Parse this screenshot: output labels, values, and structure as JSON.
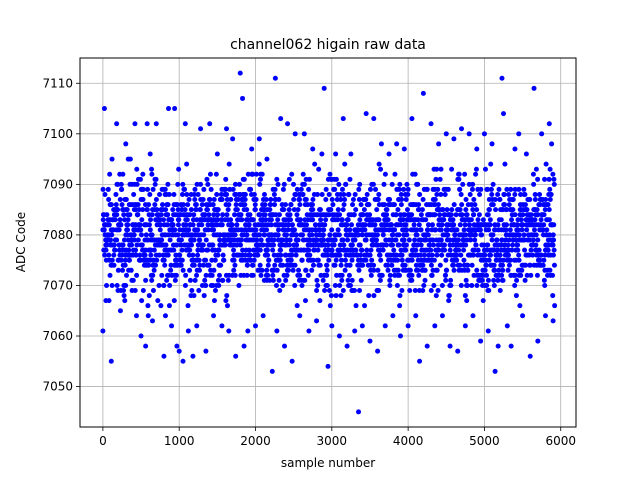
{
  "chart_data": {
    "type": "scatter",
    "title": "channel062 higain raw data",
    "xlabel": "sample number",
    "ylabel": "ADC Code",
    "xlim": [
      -300,
      6200
    ],
    "ylim": [
      7042,
      7115
    ],
    "x_ticks": [
      0,
      1000,
      2000,
      3000,
      4000,
      5000,
      6000
    ],
    "y_ticks": [
      7050,
      7060,
      7070,
      7080,
      7090,
      7100,
      7110
    ],
    "grid": true,
    "marker_color": "#0000ff",
    "series": [
      {
        "points": [
          [
            0,
            7061
          ],
          [
            20,
            7105
          ],
          [
            40,
            7067
          ],
          [
            80,
            7067
          ],
          [
            110,
            7055
          ],
          [
            120,
            7095
          ],
          [
            180,
            7102
          ],
          [
            230,
            7065
          ],
          [
            300,
            7098
          ],
          [
            360,
            7095
          ],
          [
            420,
            7102
          ],
          [
            440,
            7064
          ],
          [
            500,
            7060
          ],
          [
            560,
            7058
          ],
          [
            580,
            7102
          ],
          [
            620,
            7096
          ],
          [
            650,
            7063
          ],
          [
            700,
            7102
          ],
          [
            760,
            7066
          ],
          [
            800,
            7056
          ],
          [
            820,
            7064
          ],
          [
            860,
            7105
          ],
          [
            900,
            7062
          ],
          [
            940,
            7105
          ],
          [
            970,
            7058
          ],
          [
            1000,
            7057
          ],
          [
            1050,
            7055
          ],
          [
            1080,
            7102
          ],
          [
            1120,
            7061
          ],
          [
            1180,
            7056
          ],
          [
            1230,
            7062
          ],
          [
            1280,
            7101
          ],
          [
            1350,
            7057
          ],
          [
            1400,
            7102
          ],
          [
            1450,
            7064
          ],
          [
            1500,
            7096
          ],
          [
            1560,
            7062
          ],
          [
            1620,
            7101
          ],
          [
            1650,
            7061
          ],
          [
            1700,
            7099
          ],
          [
            1740,
            7056
          ],
          [
            1800,
            7112
          ],
          [
            1830,
            7107
          ],
          [
            1850,
            7058
          ],
          [
            1900,
            7061
          ],
          [
            1950,
            7097
          ],
          [
            2000,
            7062
          ],
          [
            2050,
            7099
          ],
          [
            2100,
            7064
          ],
          [
            2150,
            7095
          ],
          [
            2220,
            7053
          ],
          [
            2260,
            7111
          ],
          [
            2280,
            7061
          ],
          [
            2330,
            7103
          ],
          [
            2380,
            7058
          ],
          [
            2420,
            7102
          ],
          [
            2480,
            7055
          ],
          [
            2520,
            7100
          ],
          [
            2580,
            7064
          ],
          [
            2640,
            7100
          ],
          [
            2700,
            7061
          ],
          [
            2750,
            7097
          ],
          [
            2800,
            7063
          ],
          [
            2870,
            7096
          ],
          [
            2900,
            7109
          ],
          [
            2950,
            7054
          ],
          [
            3000,
            7062
          ],
          [
            3050,
            7096
          ],
          [
            3100,
            7060
          ],
          [
            3150,
            7103
          ],
          [
            3200,
            7058
          ],
          [
            3250,
            7096
          ],
          [
            3300,
            7061
          ],
          [
            3350,
            7045
          ],
          [
            3400,
            7062
          ],
          [
            3450,
            7104
          ],
          [
            3500,
            7059
          ],
          [
            3550,
            7103
          ],
          [
            3600,
            7057
          ],
          [
            3650,
            7098
          ],
          [
            3700,
            7062
          ],
          [
            3750,
            7096
          ],
          [
            3800,
            7064
          ],
          [
            3850,
            7098
          ],
          [
            3900,
            7060
          ],
          [
            3950,
            7097
          ],
          [
            4000,
            7062
          ],
          [
            4050,
            7103
          ],
          [
            4100,
            7064
          ],
          [
            4150,
            7055
          ],
          [
            4200,
            7108
          ],
          [
            4250,
            7058
          ],
          [
            4300,
            7102
          ],
          [
            4350,
            7062
          ],
          [
            4400,
            7098
          ],
          [
            4450,
            7064
          ],
          [
            4500,
            7100
          ],
          [
            4550,
            7058
          ],
          [
            4600,
            7099
          ],
          [
            4650,
            7057
          ],
          [
            4700,
            7101
          ],
          [
            4750,
            7062
          ],
          [
            4800,
            7100
          ],
          [
            4850,
            7064
          ],
          [
            4900,
            7097
          ],
          [
            4950,
            7059
          ],
          [
            5000,
            7100
          ],
          [
            5050,
            7061
          ],
          [
            5100,
            7098
          ],
          [
            5140,
            7053
          ],
          [
            5180,
            7058
          ],
          [
            5230,
            7111
          ],
          [
            5250,
            7104
          ],
          [
            5300,
            7062
          ],
          [
            5350,
            7058
          ],
          [
            5400,
            7097
          ],
          [
            5450,
            7100
          ],
          [
            5500,
            7064
          ],
          [
            5550,
            7096
          ],
          [
            5600,
            7056
          ],
          [
            5650,
            7109
          ],
          [
            5700,
            7059
          ],
          [
            5750,
            7100
          ],
          [
            5800,
            7064
          ],
          [
            5850,
            7102
          ],
          [
            5880,
            7098
          ],
          [
            5900,
            7063
          ],
          [
            5920,
            7066
          ]
        ]
      }
    ],
    "dense_band": {
      "count": 2600,
      "center": 7080,
      "half_range": 11,
      "x_range": [
        0,
        5920
      ]
    }
  }
}
